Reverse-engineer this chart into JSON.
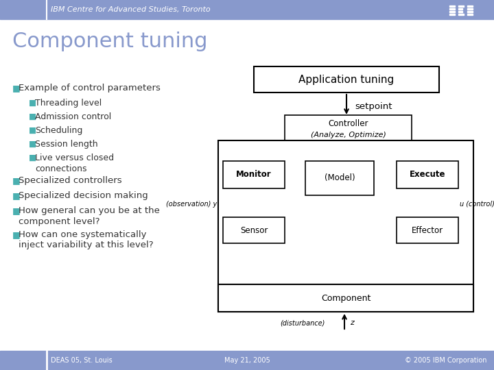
{
  "title": "Component tuning",
  "header_text": "IBM Centre for Advanced Studies, Toronto",
  "header_bg": "#8899cc",
  "header_text_color": "#ffffff",
  "slide_bg": "#ffffff",
  "title_color": "#8899cc",
  "footer_bg": "#8899cc",
  "footer_text_color": "#ffffff",
  "footer_left": "DEAS 05, St. Louis",
  "footer_center": "May 21, 2005",
  "footer_right": "© 2005 IBM Corporation",
  "bullet_teal": "#4ab0b0",
  "bullet_text": "#333333",
  "bullets": [
    {
      "text": "Example of control parameters",
      "level": 0
    },
    {
      "text": "Threading level",
      "level": 1
    },
    {
      "text": "Admission control",
      "level": 1
    },
    {
      "text": "Scheduling",
      "level": 1
    },
    {
      "text": "Session length",
      "level": 1
    },
    {
      "text": "Live versus closed\nconnections",
      "level": 1
    },
    {
      "text": "Specialized controllers",
      "level": 0
    },
    {
      "text": "Specialized decision making",
      "level": 0
    },
    {
      "text": "How general can you be at the\ncomponent level?",
      "level": 0
    },
    {
      "text": "How can one systematically\ninject variability at this level?",
      "level": 0
    }
  ]
}
